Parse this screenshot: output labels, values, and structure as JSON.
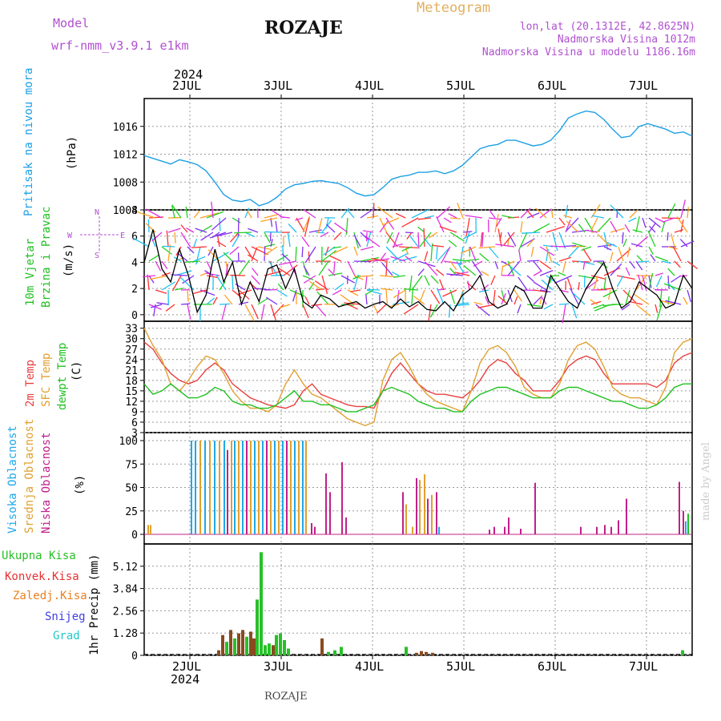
{
  "header": {
    "model_label": "Model",
    "model_name": "wrf-nmm_v3.9.1  e1km",
    "station": "ROZAJE",
    "kind": "Meteogram",
    "coords": "lon,lat (20.1312E, 42.8625N)",
    "elevation": "Nadmorska Visina 1012m",
    "model_elevation": "Nadmorska Visina u modelu 1186.16m",
    "footer": "ROZAJE",
    "credit": "made by Angel"
  },
  "time_axis": {
    "year": "2024",
    "days": [
      "2JUL",
      "3JUL",
      "4JUL",
      "5JUL",
      "6JUL",
      "7JUL"
    ]
  },
  "colors": {
    "pressure": "#1ea0e6",
    "temp2m": "#e84040",
    "sfc": "#e0a030",
    "dewpt": "#20c020",
    "high_cloud": "#20a8e8",
    "mid_cloud": "#e0a030",
    "low_cloud": "#c0208a",
    "total": "#28c028",
    "convective": "#e83030",
    "freezing": "#e88020",
    "snow": "#4040e0",
    "hail": "#20c8c8",
    "purple": "#b050d0"
  },
  "chart_data": [
    {
      "type": "line",
      "panel": "pressure",
      "ylabel_left": "Pritisak na nivou mora",
      "ylabel_unit": "(hPa)",
      "yticks": [
        "1004",
        "1008",
        "1012",
        "1016"
      ],
      "ylim": [
        1004,
        1020
      ],
      "x_day_start": 1.5,
      "series": [
        {
          "values": [
            1011.8,
            1011.4,
            1011.0,
            1010.6,
            1011.2,
            1010.9,
            1010.5,
            1009.6,
            1008.0,
            1006.2,
            1005.4,
            1005.2,
            1005.5,
            1004.6,
            1005.0,
            1005.8,
            1007.0,
            1007.6,
            1007.8,
            1008.1,
            1008.2,
            1008.0,
            1007.8,
            1007.2,
            1006.4,
            1006.0,
            1006.2,
            1007.2,
            1008.4,
            1008.8,
            1009.0,
            1009.4,
            1009.4,
            1009.6,
            1009.2,
            1009.6,
            1010.4,
            1011.6,
            1012.8,
            1013.2,
            1013.4,
            1014.0,
            1014.0,
            1013.6,
            1013.2,
            1013.4,
            1014.0,
            1015.4,
            1017.2,
            1017.8,
            1018.2,
            1018.0,
            1017.0,
            1015.6,
            1014.4,
            1014.6,
            1016.0,
            1016.4,
            1016.0,
            1015.6,
            1015.0,
            1015.2,
            1014.6
          ]
        }
      ]
    },
    {
      "type": "line",
      "panel": "wind",
      "ylabel_left": "10m Vjetar",
      "ylabel_left2": "Brzina i Pravac",
      "ylabel_unit": "(m/s)",
      "legend": {
        "n": "N",
        "s": "S",
        "w": "W",
        "e": "E"
      },
      "yticks": [
        "0",
        "2",
        "4",
        "6",
        "8"
      ],
      "ylim": [
        -0.5,
        8
      ],
      "series": [
        {
          "values": [
            4.0,
            6.5,
            3.5,
            2.5,
            5.0,
            3.0,
            0.2,
            1.5,
            5.0,
            2.5,
            4.0,
            0.8,
            2.5,
            1.0,
            3.5,
            3.8,
            2.0,
            3.5,
            1.0,
            0.5,
            1.5,
            1.2,
            0.6,
            0.8,
            1.0,
            0.5,
            0.8,
            1.0,
            0.5,
            1.2,
            0.6,
            1.0,
            0.4,
            0.3,
            1.0,
            0.3,
            1.5,
            2.0,
            3.0,
            1.0,
            0.5,
            0.8,
            2.2,
            1.8,
            0.5,
            0.5,
            3.0,
            2.0,
            1.0,
            0.5,
            2.0,
            3.0,
            4.0,
            2.0,
            0.5,
            1.0,
            2.5,
            2.0,
            1.5,
            0.5,
            0.8,
            3.0,
            2.0
          ]
        }
      ]
    },
    {
      "type": "line",
      "panel": "temperature",
      "ylabel_left": "2m Temp",
      "ylabel_left2": "SFC Temp",
      "ylabel_left3": "dewpt Temp",
      "ylabel_unit": "(C)",
      "yticks": [
        "3",
        "6",
        "9",
        "12",
        "15",
        "18",
        "21",
        "24",
        "27",
        "30",
        "33"
      ],
      "ylim": [
        3,
        35
      ],
      "series": [
        {
          "name": "2m Temp",
          "values": [
            29,
            27,
            23,
            20,
            18,
            17,
            18,
            21,
            23,
            21,
            17,
            15,
            13,
            12,
            11,
            10.5,
            10,
            11,
            15,
            17,
            14,
            13,
            12,
            11,
            10.5,
            10.5,
            10,
            15,
            20,
            23,
            20,
            17,
            15,
            14,
            14,
            13.5,
            13,
            15,
            18,
            22,
            24,
            23,
            20,
            18,
            15,
            15,
            15,
            18,
            22,
            24,
            25,
            24,
            20,
            17,
            17,
            17,
            17,
            17,
            16,
            18,
            23,
            25,
            26
          ]
        },
        {
          "name": "SFC Temp",
          "values": [
            33,
            28,
            24,
            17,
            15,
            18,
            22,
            25,
            24,
            20,
            15,
            12,
            10,
            10,
            9,
            11,
            17,
            21,
            17,
            14,
            13,
            11,
            9,
            7,
            6,
            5,
            6,
            18,
            24,
            26,
            22,
            17,
            14,
            12,
            11,
            10,
            9,
            15,
            23,
            27,
            28,
            26,
            22,
            16,
            14,
            13,
            13,
            17,
            24,
            28,
            29,
            27,
            22,
            16,
            14,
            13,
            13,
            12,
            11,
            16,
            26,
            29,
            30
          ]
        },
        {
          "name": "dewpt Temp",
          "values": [
            17,
            14,
            15,
            17,
            15,
            13,
            13,
            14,
            16,
            15,
            12,
            11,
            11,
            10,
            10,
            11,
            13,
            15,
            12,
            12,
            11,
            11,
            10,
            9,
            9,
            10,
            11,
            15,
            16,
            15,
            14,
            12,
            11,
            10,
            10,
            9,
            9,
            12,
            14,
            15,
            16,
            16,
            15,
            14,
            13,
            13,
            13,
            15,
            16,
            16,
            15,
            14,
            13,
            12,
            12,
            11,
            10,
            10,
            11,
            13,
            16,
            17,
            17
          ]
        }
      ]
    },
    {
      "type": "bar",
      "panel": "clouds",
      "ylabel_left": "Visoka Oblacnost",
      "ylabel_left2": "Srednja Oblacnost",
      "ylabel_left3": "Niska Oblacnost",
      "ylabel_unit": "(%)",
      "yticks": [
        "0",
        "25",
        "50",
        "75",
        "100"
      ],
      "ylim": [
        0,
        100
      ]
    },
    {
      "type": "bar",
      "panel": "precip",
      "legend": [
        "Ukupna Kisa",
        "Konvek.Kisa",
        "Zaledj.Kisa",
        "Snijeg",
        "Grad"
      ],
      "ylabel_unit": "1hr Precip (mm)",
      "yticks": [
        "0",
        "1.28",
        "2.56",
        "3.84",
        "5.12"
      ],
      "ylim": [
        0,
        6.4
      ]
    }
  ]
}
